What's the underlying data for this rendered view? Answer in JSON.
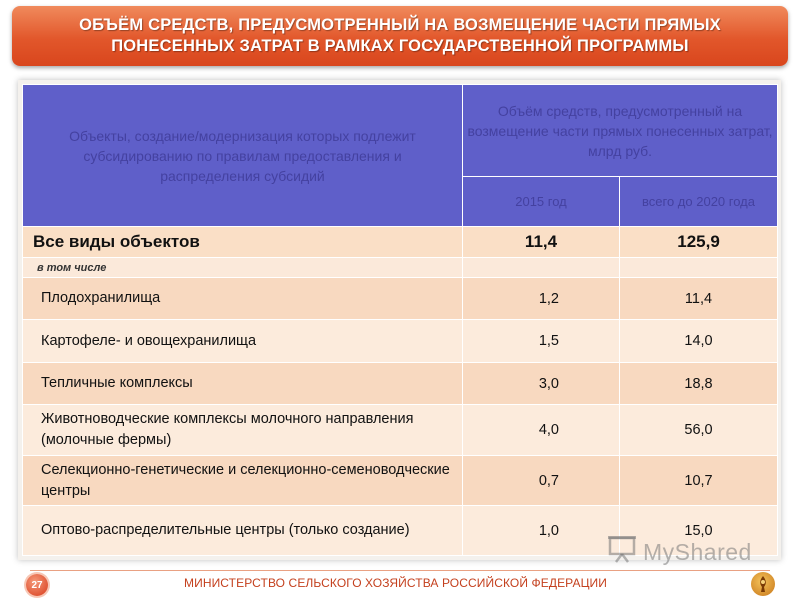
{
  "title": {
    "line1": "ОБЪЁМ СРЕДСТВ, ПРЕДУСМОТРЕННЫЙ НА ВОЗМЕЩЕНИЕ ЧАСТИ ПРЯМЫХ",
    "line2": "ПОНЕСЕННЫХ ЗАТРАТ В РАМКАХ ГОСУДАРСТВЕННОЙ ПРОГРАММЫ"
  },
  "table": {
    "header_objects": "Объекты, создание/модернизация которых подлежит субсидированию по правилам предоставления и распределения субсидий",
    "header_volume": "Объём средств, предусмотренный на возмещение части прямых понесенных затрат, млрд руб.",
    "col_2015": "2015 год",
    "col_2020": "всего до 2020 года",
    "total": {
      "name": "Все виды объектов",
      "v2015": "11,4",
      "v2020": "125,9"
    },
    "subheader": "в том числе",
    "rows": [
      {
        "name": "Плодохранилища",
        "v2015": "1,2",
        "v2020": "11,4"
      },
      {
        "name": "Картофеле- и овощехранилища",
        "v2015": "1,5",
        "v2020": "14,0"
      },
      {
        "name": "Тепличные комплексы",
        "v2015": "3,0",
        "v2020": "18,8"
      },
      {
        "name": "Животноводческие комплексы молочного направления (молочные фермы)",
        "v2015": "4,0",
        "v2020": "56,0"
      },
      {
        "name": "Селекционно-генетические и селекционно-семеноводческие центры",
        "v2015": "0,7",
        "v2020": "10,7"
      },
      {
        "name": "Оптово-распределительные центры (только создание)",
        "v2015": "1,0",
        "v2020": "15,0"
      }
    ]
  },
  "footer": {
    "page_number": "27",
    "ministry": "МИНИСТЕРСТВО СЕЛЬСКОГО ХОЗЯЙСТВА РОССИЙСКОЙ ФЕДЕРАЦИИ",
    "watermark": "MyShared"
  },
  "colors": {
    "title_bg": "#e2572b",
    "header_bg": "#5f5fc9",
    "row_a": "#f8d9c0",
    "row_b": "#fcebdc",
    "footer_text": "#c4401e"
  },
  "icons": {
    "emblem": "ministry-emblem-icon",
    "watermark": "presentation-screen-icon"
  }
}
